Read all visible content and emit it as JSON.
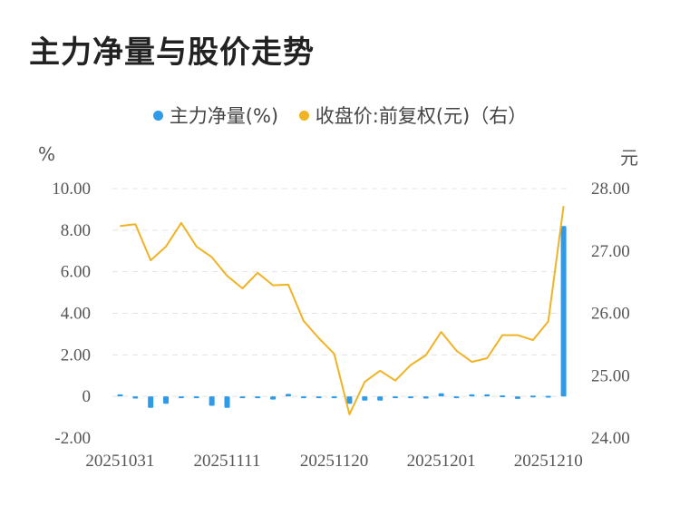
{
  "title": "主力净量与股价走势",
  "legend": [
    {
      "label": "主力净量(%)",
      "color": "#2e9ae8"
    },
    {
      "label": "收盘价:前复权(元)（右）",
      "color": "#f0b323"
    }
  ],
  "axis": {
    "left_unit": "%",
    "right_unit": "元"
  },
  "chart_data": {
    "type": "bar+line",
    "x": [
      "20251031",
      "20251103",
      "20251104",
      "20251105",
      "20251106",
      "20251107",
      "20251110",
      "20251111",
      "20251112",
      "20251113",
      "20251114",
      "20251117",
      "20251118",
      "20251119",
      "20251120",
      "20251121",
      "20251124",
      "20251125",
      "20251126",
      "20251127",
      "20251128",
      "20251201",
      "20251202",
      "20251203",
      "20251204",
      "20251205",
      "20251208",
      "20251209",
      "20251210",
      "20251211"
    ],
    "x_tick_labels": [
      "20251031",
      "20251111",
      "20251120",
      "20251201",
      "20251210"
    ],
    "left_axis": {
      "ylim": [
        -2,
        10
      ],
      "ticks": [
        "-2.00",
        "0",
        "2.00",
        "4.00",
        "6.00",
        "8.00",
        "10.00"
      ],
      "tick_values": [
        -2,
        0,
        2,
        4,
        6,
        8,
        10
      ]
    },
    "right_axis": {
      "ylim": [
        24,
        28
      ],
      "ticks": [
        "24.00",
        "25.00",
        "26.00",
        "27.00",
        "28.00"
      ],
      "tick_values": [
        24,
        25,
        26,
        27,
        28
      ]
    },
    "series": [
      {
        "name": "主力净量(%)",
        "type": "bar",
        "axis": "left",
        "color": "#2e9ae8",
        "values": [
          0.1,
          -0.1,
          -0.55,
          -0.35,
          -0.05,
          -0.05,
          -0.45,
          -0.55,
          0,
          -0.03,
          -0.15,
          0.12,
          -0.03,
          -0.03,
          -0.03,
          -0.35,
          -0.2,
          -0.2,
          -0.08,
          -0.08,
          -0.1,
          0.15,
          -0.05,
          0.1,
          0.1,
          0.05,
          -0.12,
          0.04,
          0.03,
          8.2
        ]
      },
      {
        "name": "收盘价:前复权(元)（右）",
        "type": "line",
        "axis": "right",
        "color": "#f0b323",
        "values": [
          27.4,
          27.43,
          26.85,
          27.07,
          27.45,
          27.07,
          26.9,
          26.6,
          26.4,
          26.65,
          26.45,
          26.46,
          25.88,
          25.6,
          25.35,
          24.38,
          24.9,
          25.08,
          24.92,
          25.17,
          25.33,
          25.7,
          25.4,
          25.22,
          25.28,
          25.65,
          25.65,
          25.57,
          25.87,
          27.72
        ]
      }
    ],
    "grid": true,
    "legend_position": "top-center"
  }
}
